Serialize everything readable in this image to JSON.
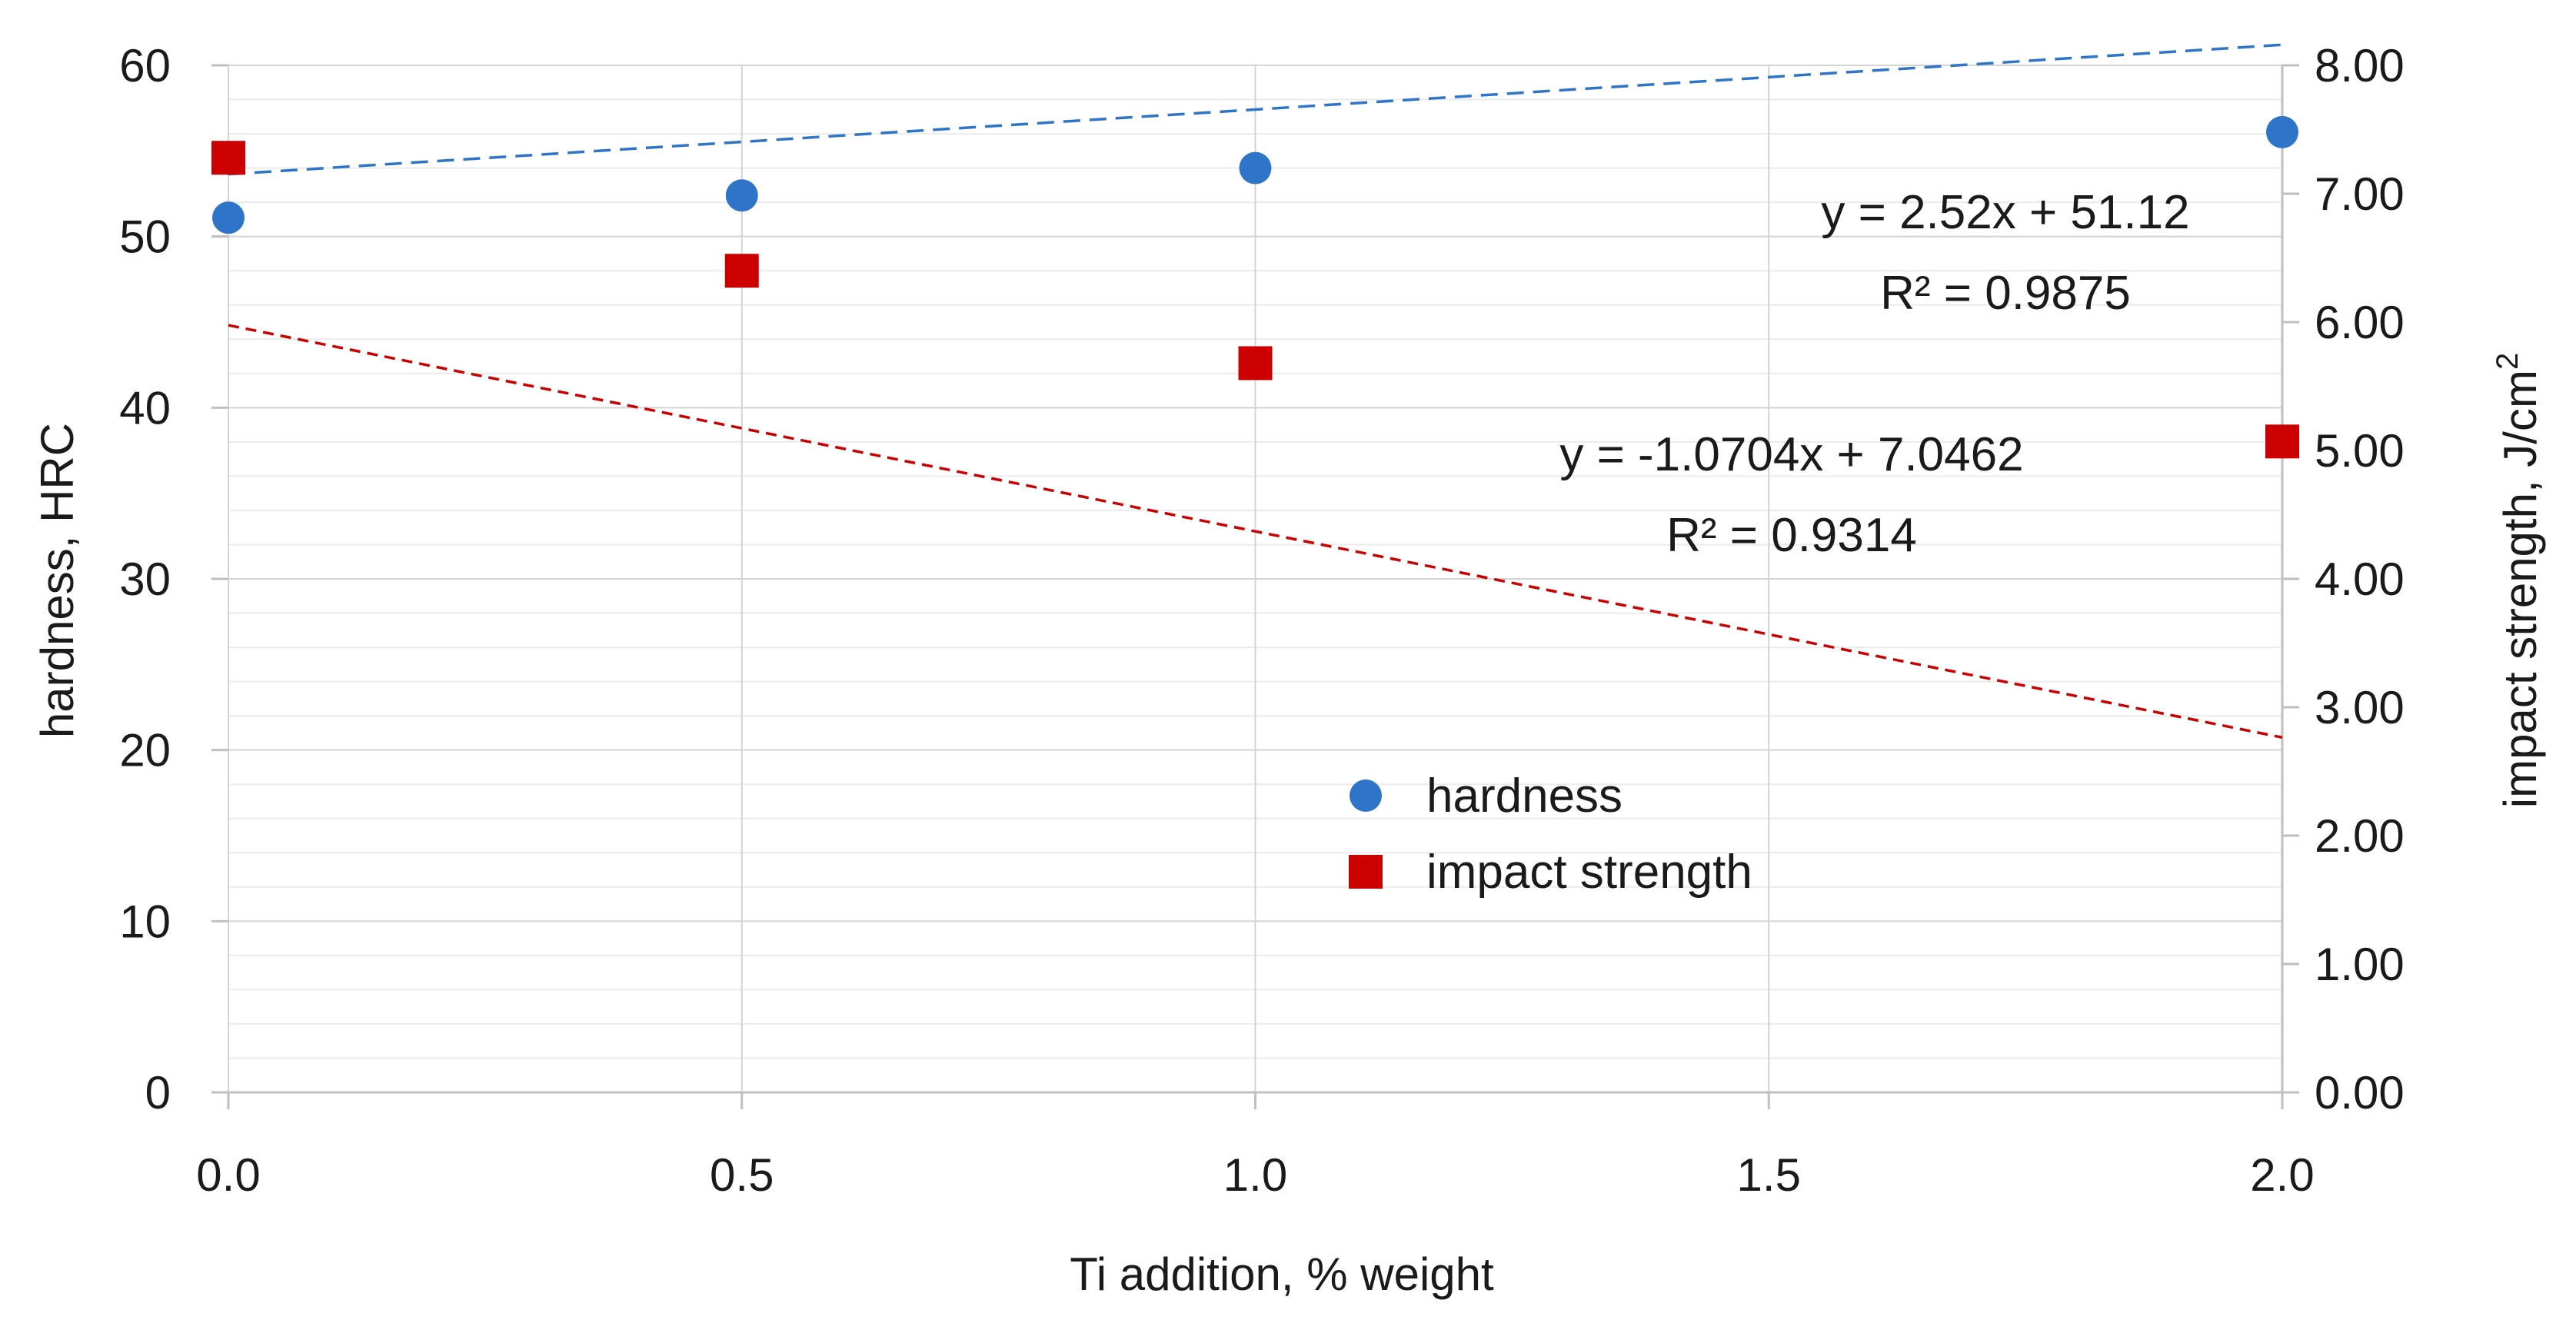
{
  "chart_data": {
    "type": "scatter",
    "title": "",
    "xlabel": "Ti addition, % weight",
    "ylabel_left": "hardness, HRC",
    "ylabel_right": "impact strength, J/cm",
    "ylabel_right_sup": "2",
    "xlim": [
      0,
      2
    ],
    "ylim_left": [
      0,
      60
    ],
    "ylim_right": [
      0,
      8
    ],
    "x_ticks": [
      "0.0",
      "0.5",
      "1.0",
      "1.5",
      "2.0"
    ],
    "y_left_ticks": [
      "0",
      "10",
      "20",
      "30",
      "40",
      "50",
      "60"
    ],
    "y_right_ticks": [
      "0.00",
      "1.00",
      "2.00",
      "3.00",
      "4.00",
      "5.00",
      "6.00",
      "7.00",
      "8.00"
    ],
    "grid": true,
    "series": [
      {
        "name": "hardness",
        "axis": "left",
        "marker": "circle",
        "color": "#2e75c9",
        "x": [
          0.0,
          0.5,
          1.0,
          2.0
        ],
        "y": [
          51.1,
          52.4,
          54.0,
          56.1
        ],
        "trendline": {
          "slope_per_index": 2.52,
          "intercept": 51.12,
          "equation": "y = 2.52x + 51.12",
          "r2": "R² = 0.9875"
        }
      },
      {
        "name": "impact strength",
        "axis": "right",
        "marker": "square",
        "color": "#cc0000",
        "x": [
          0.0,
          0.5,
          1.0,
          2.0
        ],
        "y": [
          7.28,
          6.4,
          5.68,
          5.07
        ],
        "trendline": {
          "slope_per_index": -1.0704,
          "intercept": 7.0462,
          "equation": "y = -1.0704x + 7.0462",
          "r2": "R² = 0.9314"
        }
      }
    ],
    "legend": {
      "placement": "center",
      "entries": [
        "hardness",
        "impact strength"
      ]
    }
  }
}
